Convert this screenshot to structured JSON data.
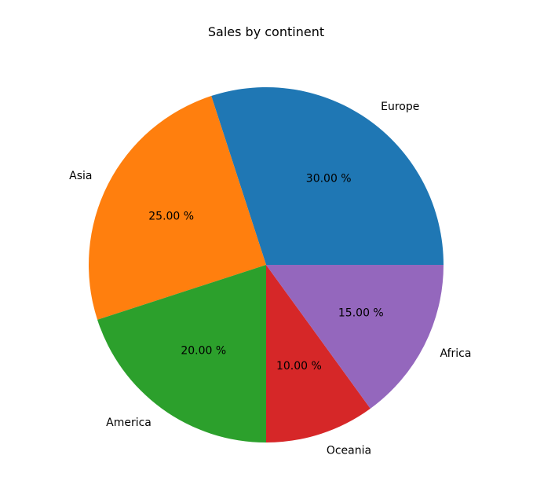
{
  "chart_data": {
    "type": "pie",
    "title": "Sales by continent",
    "labels": [
      "Europe",
      "Asia",
      "America",
      "Oceania",
      "Africa"
    ],
    "values": [
      30,
      25,
      20,
      10,
      15
    ],
    "percent_labels": [
      "30.00 %",
      "25.00 %",
      "20.00 %",
      "10.00 %",
      "15.00 %"
    ],
    "colors": [
      "#1f77b4",
      "#ff7f0e",
      "#2ca02c",
      "#d62728",
      "#9467bd"
    ],
    "start_angle_deg": 0,
    "direction": "counterclockwise"
  }
}
